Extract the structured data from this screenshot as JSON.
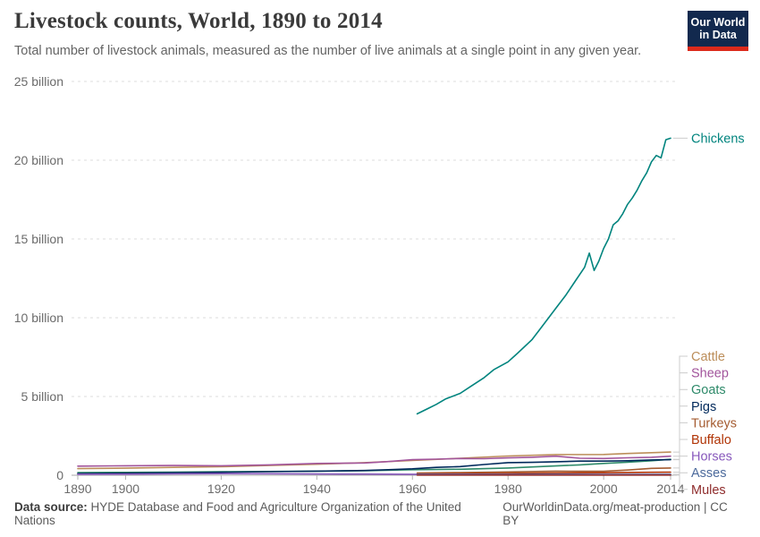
{
  "header": {
    "logo": {
      "line1": "Our World",
      "line2": "in Data",
      "bg": "#12294E",
      "accent": "#DC2A1B"
    }
  },
  "footer": {
    "source_label": "Data source:",
    "source_text": " HYDE Database and Food and Agriculture Organization of the United Nations",
    "link_text": "OurWorldinData.org/meat-production | CC BY"
  },
  "chart_data": {
    "type": "line",
    "title": "Livestock counts, World, 1890 to 2014",
    "subtitle": "Total number of livestock animals, measured as the number of live animals at a single point in any given year.",
    "unit": "billion animals",
    "x_range": [
      1890,
      2014
    ],
    "y_range": [
      0,
      25
    ],
    "grid": "dashed horizontal gridlines",
    "legend_position": "right edge, labels colored per series",
    "x_ticks": [
      1890,
      1900,
      1920,
      1940,
      1960,
      1980,
      2000,
      2014
    ],
    "y_ticks": [
      {
        "value": 0,
        "label": "0"
      },
      {
        "value": 5,
        "label": "5 billion"
      },
      {
        "value": 10,
        "label": "10 billion"
      },
      {
        "value": 15,
        "label": "15 billion"
      },
      {
        "value": 20,
        "label": "20 billion"
      },
      {
        "value": 25,
        "label": "25 billion"
      }
    ],
    "series": [
      {
        "name": "Chickens",
        "color": "#00847E",
        "points": [
          [
            1961,
            3.9
          ],
          [
            1963,
            4.2
          ],
          [
            1965,
            4.5
          ],
          [
            1967,
            4.85
          ],
          [
            1970,
            5.2
          ],
          [
            1972,
            5.6
          ],
          [
            1975,
            6.2
          ],
          [
            1977,
            6.7
          ],
          [
            1980,
            7.2
          ],
          [
            1982,
            7.75
          ],
          [
            1985,
            8.6
          ],
          [
            1987,
            9.4
          ],
          [
            1990,
            10.6
          ],
          [
            1992,
            11.4
          ],
          [
            1994,
            12.3
          ],
          [
            1996,
            13.2
          ],
          [
            1997,
            14.1
          ],
          [
            1998,
            13.0
          ],
          [
            1999,
            13.6
          ],
          [
            2000,
            14.4
          ],
          [
            2001,
            15.0
          ],
          [
            2002,
            15.9
          ],
          [
            2003,
            16.15
          ],
          [
            2004,
            16.6
          ],
          [
            2005,
            17.2
          ],
          [
            2006,
            17.6
          ],
          [
            2007,
            18.1
          ],
          [
            2008,
            18.7
          ],
          [
            2009,
            19.2
          ],
          [
            2010,
            19.9
          ],
          [
            2011,
            20.3
          ],
          [
            2012,
            20.15
          ],
          [
            2013,
            21.3
          ],
          [
            2014,
            21.4
          ]
        ]
      },
      {
        "name": "Cattle",
        "color": "#BC8E5A",
        "points": [
          [
            1890,
            0.42
          ],
          [
            1900,
            0.45
          ],
          [
            1910,
            0.5
          ],
          [
            1920,
            0.54
          ],
          [
            1930,
            0.62
          ],
          [
            1940,
            0.7
          ],
          [
            1950,
            0.8
          ],
          [
            1960,
            0.94
          ],
          [
            1970,
            1.08
          ],
          [
            1980,
            1.22
          ],
          [
            1990,
            1.31
          ],
          [
            2000,
            1.32
          ],
          [
            2005,
            1.38
          ],
          [
            2010,
            1.43
          ],
          [
            2014,
            1.47
          ]
        ]
      },
      {
        "name": "Sheep",
        "color": "#A2559C",
        "points": [
          [
            1890,
            0.58
          ],
          [
            1900,
            0.6
          ],
          [
            1910,
            0.62
          ],
          [
            1920,
            0.6
          ],
          [
            1930,
            0.66
          ],
          [
            1940,
            0.75
          ],
          [
            1950,
            0.78
          ],
          [
            1955,
            0.87
          ],
          [
            1960,
            0.99
          ],
          [
            1965,
            1.02
          ],
          [
            1970,
            1.06
          ],
          [
            1975,
            1.05
          ],
          [
            1980,
            1.1
          ],
          [
            1985,
            1.14
          ],
          [
            1990,
            1.21
          ],
          [
            1995,
            1.08
          ],
          [
            2000,
            1.06
          ],
          [
            2005,
            1.11
          ],
          [
            2010,
            1.14
          ],
          [
            2014,
            1.21
          ]
        ]
      },
      {
        "name": "Goats",
        "color": "#2E8A6A",
        "points": [
          [
            1890,
            0.17
          ],
          [
            1900,
            0.18
          ],
          [
            1910,
            0.2
          ],
          [
            1920,
            0.22
          ],
          [
            1930,
            0.24
          ],
          [
            1940,
            0.26
          ],
          [
            1950,
            0.29
          ],
          [
            1960,
            0.35
          ],
          [
            1970,
            0.38
          ],
          [
            1980,
            0.46
          ],
          [
            1990,
            0.59
          ],
          [
            1995,
            0.66
          ],
          [
            2000,
            0.75
          ],
          [
            2005,
            0.83
          ],
          [
            2010,
            0.92
          ],
          [
            2014,
            1.01
          ]
        ]
      },
      {
        "name": "Pigs",
        "color": "#00295B",
        "points": [
          [
            1890,
            0.1
          ],
          [
            1900,
            0.13
          ],
          [
            1910,
            0.16
          ],
          [
            1920,
            0.19
          ],
          [
            1930,
            0.23
          ],
          [
            1940,
            0.26
          ],
          [
            1950,
            0.3
          ],
          [
            1955,
            0.35
          ],
          [
            1960,
            0.41
          ],
          [
            1965,
            0.5
          ],
          [
            1970,
            0.55
          ],
          [
            1975,
            0.68
          ],
          [
            1980,
            0.8
          ],
          [
            1985,
            0.82
          ],
          [
            1990,
            0.86
          ],
          [
            1995,
            0.9
          ],
          [
            2000,
            0.9
          ],
          [
            2005,
            0.92
          ],
          [
            2010,
            0.97
          ],
          [
            2014,
            0.99
          ]
        ]
      },
      {
        "name": "Turkeys",
        "color": "#A55C31",
        "points": [
          [
            1961,
            0.14
          ],
          [
            1970,
            0.17
          ],
          [
            1980,
            0.21
          ],
          [
            1990,
            0.26
          ],
          [
            1995,
            0.25
          ],
          [
            2000,
            0.25
          ],
          [
            2005,
            0.33
          ],
          [
            2010,
            0.44
          ],
          [
            2014,
            0.46
          ]
        ]
      },
      {
        "name": "Buffalo",
        "color": "#B13507",
        "points": [
          [
            1961,
            0.088
          ],
          [
            1970,
            0.1
          ],
          [
            1980,
            0.12
          ],
          [
            1990,
            0.15
          ],
          [
            2000,
            0.16
          ],
          [
            2010,
            0.19
          ],
          [
            2014,
            0.194
          ]
        ]
      },
      {
        "name": "Horses",
        "color": "#8859BC",
        "points": [
          [
            1890,
            0.06
          ],
          [
            1900,
            0.07
          ],
          [
            1910,
            0.09
          ],
          [
            1920,
            0.1
          ],
          [
            1930,
            0.095
          ],
          [
            1940,
            0.08
          ],
          [
            1950,
            0.075
          ],
          [
            1960,
            0.065
          ],
          [
            1970,
            0.062
          ],
          [
            1980,
            0.059
          ],
          [
            1990,
            0.061
          ],
          [
            2000,
            0.058
          ],
          [
            2014,
            0.059
          ]
        ]
      },
      {
        "name": "Asses",
        "color": "#4C6A9C",
        "points": [
          [
            1961,
            0.037
          ],
          [
            1970,
            0.04
          ],
          [
            1980,
            0.039
          ],
          [
            1990,
            0.043
          ],
          [
            2000,
            0.042
          ],
          [
            2014,
            0.044
          ]
        ]
      },
      {
        "name": "Mules",
        "color": "#8F2D2D",
        "points": [
          [
            1961,
            0.011
          ],
          [
            1970,
            0.012
          ],
          [
            1980,
            0.013
          ],
          [
            1990,
            0.013
          ],
          [
            2000,
            0.012
          ],
          [
            2014,
            0.01
          ]
        ]
      }
    ]
  }
}
